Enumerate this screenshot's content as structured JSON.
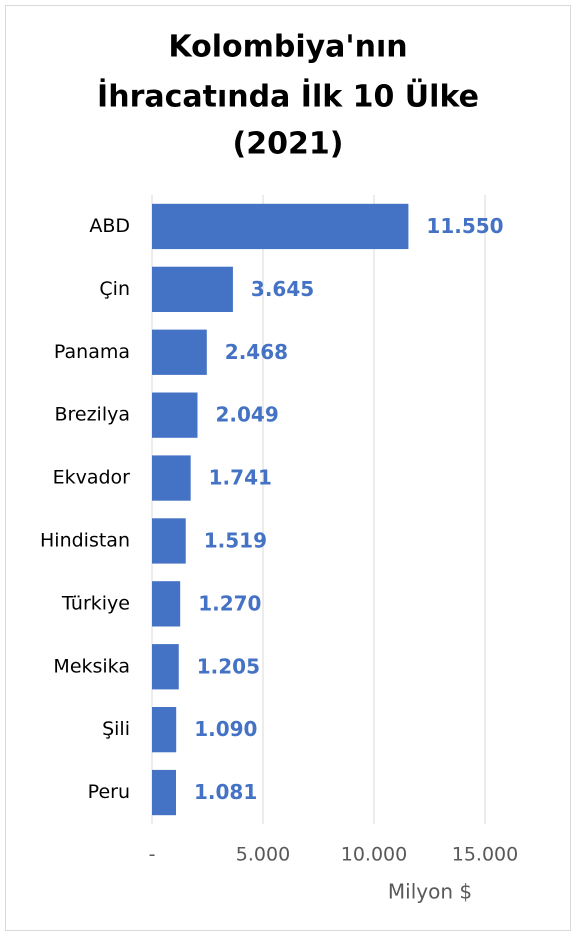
{
  "chart_data": {
    "type": "bar",
    "orientation": "horizontal",
    "title": [
      "Kolombiya'nın",
      "İhracatında İlk 10 Ülke",
      "(2021)"
    ],
    "categories": [
      "ABD",
      "Çin",
      "Panama",
      "Brezilya",
      "Ekvador",
      "Hindistan",
      "Türkiye",
      "Meksika",
      "Şili",
      "Peru"
    ],
    "values": [
      11550,
      3645,
      2468,
      2049,
      1741,
      1519,
      1270,
      1205,
      1090,
      1081
    ],
    "value_labels": [
      "11.550",
      "3.645",
      "2.468",
      "2.049",
      "1.741",
      "1.519",
      "1.270",
      "1.205",
      "1.090",
      "1.081"
    ],
    "color": "#4472c4",
    "xlim": [
      0,
      15000
    ],
    "xticks": [
      {
        "value": 0,
        "label": "-"
      },
      {
        "value": 5000,
        "label": "5.000"
      },
      {
        "value": 10000,
        "label": "10.000"
      },
      {
        "value": 15000,
        "label": "15.000"
      }
    ],
    "xlabel": "Milyon $",
    "grid": true
  }
}
